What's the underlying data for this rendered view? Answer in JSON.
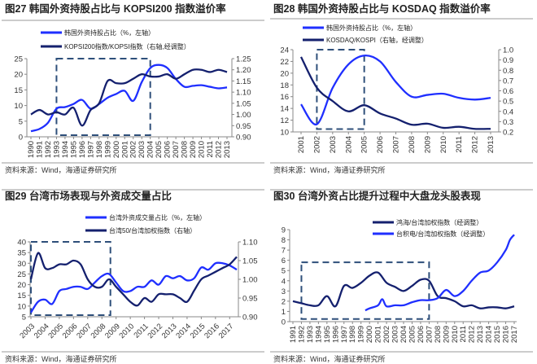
{
  "colors": {
    "bright_blue": "#1f2fff",
    "navy": "#14206e",
    "dashed_box": "#2e4f7a"
  },
  "chart_data": [
    {
      "type": "line",
      "title": "图27 韩国外资持股占比与 KOPSI200 指数溢价率",
      "source": "资料来源：Wind，海通证券研究所",
      "x": [
        1990,
        1991,
        1992,
        1993,
        1994,
        1995,
        1996,
        1997,
        1998,
        1999,
        2000,
        2001,
        2002,
        2003,
        2004,
        2005,
        2006,
        2007,
        2008,
        2009,
        2010,
        2011,
        2012,
        2013
      ],
      "xticks": [
        "1990",
        "1991",
        "1992",
        "1993",
        "1994",
        "1995",
        "1996",
        "1997",
        "1998",
        "1999",
        "2000",
        "2001",
        "2002",
        "2003",
        "2004",
        "2005",
        "2006",
        "2007",
        "2008",
        "2009",
        "2010",
        "2011",
        "2012",
        "2013"
      ],
      "ylim_left": [
        0,
        25
      ],
      "yticks_left": [
        "0",
        "5",
        "10",
        "15",
        "20",
        "25"
      ],
      "ylim_right": [
        0.9,
        1.25
      ],
      "yticks_right": [
        "0.90",
        "0.95",
        "1.00",
        "1.05",
        "1.10",
        "1.15",
        "1.20",
        "1.25"
      ],
      "highlight_box": {
        "x": [
          1993,
          2004
        ],
        "y_left": [
          0,
          25
        ]
      },
      "series": [
        {
          "name": "韩国外资持股占比（%，左轴）",
          "axis": "left",
          "color": "bright_blue",
          "values": [
            1.8,
            2.5,
            4.5,
            9,
            9.5,
            10.5,
            11.8,
            9,
            10.5,
            12.5,
            13.7,
            14.7,
            11.5,
            17.5,
            22,
            23,
            22,
            18.5,
            16,
            16.3,
            16.5,
            16,
            15.5,
            15.8
          ]
        },
        {
          "name": "KOPSI200指数/KOPSI指数（右轴,经调整）",
          "axis": "right",
          "color": "navy",
          "values": [
            1.0,
            1.02,
            1.0,
            1.01,
            1.0,
            1.03,
            0.95,
            1.02,
            1.05,
            1.15,
            1.14,
            1.14,
            1.16,
            1.18,
            1.17,
            1.17,
            1.18,
            1.16,
            1.18,
            1.2,
            1.2,
            1.19,
            1.2,
            1.19
          ]
        }
      ]
    },
    {
      "type": "line",
      "title": "图28 韩国外资持股占比与 KOSDAQ 指数溢价率",
      "source": "资料来源：Wind，海通证券研究所",
      "x": [
        2001,
        2002,
        2003,
        2004,
        2005,
        2006,
        2007,
        2008,
        2009,
        2010,
        2011,
        2012,
        2013
      ],
      "xticks": [
        "2001",
        "2002",
        "2003",
        "2004",
        "2005",
        "2006",
        "2007",
        "2008",
        "2009",
        "2010",
        "2011",
        "2012",
        "2013"
      ],
      "ylim_left": [
        10,
        24
      ],
      "yticks_left": [
        "10",
        "12",
        "14",
        "16",
        "18",
        "20",
        "22",
        "24"
      ],
      "ylim_right": [
        0.2,
        1.0
      ],
      "yticks_right": [
        "0.2",
        "0.3",
        "0.4",
        "0.5",
        "0.6",
        "0.7",
        "0.8",
        "0.9",
        "1.0"
      ],
      "highlight_box": {
        "x": [
          2002,
          2005
        ],
        "y_left": [
          10.2,
          24
        ]
      },
      "series": [
        {
          "name": "韩国外资持股占比（%，左轴）",
          "axis": "left",
          "color": "bright_blue",
          "values": [
            14.7,
            11.3,
            17.5,
            21.5,
            23,
            22,
            18.5,
            16,
            16.3,
            16.5,
            15.8,
            15.5,
            15.8
          ]
        },
        {
          "name": "KOSDAQ/KOSPI（右轴，经调整）",
          "axis": "right",
          "color": "navy",
          "values": [
            0.93,
            0.63,
            0.5,
            0.4,
            0.46,
            0.38,
            0.33,
            0.27,
            0.28,
            0.24,
            0.25,
            0.23,
            0.23
          ]
        }
      ]
    },
    {
      "type": "line",
      "title": "图29 台湾市场表现与外资成交量占比",
      "source": "资料来源：Wind，海通证券研究所",
      "x": [
        2003.0,
        2003.5,
        2004.0,
        2004.5,
        2005.0,
        2005.5,
        2006.0,
        2006.5,
        2007.0,
        2007.5,
        2008.0,
        2008.5,
        2009.0,
        2009.5,
        2010.0,
        2010.5,
        2011.0,
        2011.5,
        2012.0,
        2012.5,
        2013.0,
        2013.5,
        2014.0,
        2014.5,
        2015.0,
        2015.5,
        2016.0,
        2016.5,
        2017.0,
        2017.5
      ],
      "xticks": [
        "2003",
        "2004",
        "2005",
        "2006",
        "2007",
        "2008",
        "2009",
        "2010",
        "2011",
        "2012",
        "2013",
        "2014",
        "2015",
        "2016",
        "2017"
      ],
      "ylim_left": [
        5,
        40
      ],
      "yticks_left": [
        "5",
        "10",
        "15",
        "20",
        "25",
        "30",
        "35",
        "40"
      ],
      "ylim_right": [
        0.9,
        1.1
      ],
      "yticks_right": [
        "0.90",
        "0.95",
        "1.00",
        "1.05",
        "1.10"
      ],
      "highlight_box": {
        "x": [
          2003,
          2008.6
        ],
        "y_left": [
          5,
          40
        ]
      },
      "series": [
        {
          "name": "台湾外资成交量占比（%，左轴）",
          "axis": "left",
          "color": "bright_blue",
          "values": [
            7,
            12,
            13,
            11,
            17,
            18,
            19,
            19,
            18,
            21,
            24,
            25,
            21,
            17,
            17,
            19,
            19,
            22,
            20,
            24,
            23,
            24,
            22,
            23,
            28,
            27,
            30,
            30,
            29,
            27
          ]
        },
        {
          "name": "台湾50/台湾加权指数（右轴）",
          "axis": "right",
          "color": "navy",
          "values": [
            1.0,
            1.07,
            1.03,
            1.03,
            1.04,
            1.04,
            1.05,
            1.04,
            1.0,
            0.98,
            0.98,
            1.0,
            0.98,
            0.96,
            0.94,
            0.93,
            0.95,
            0.94,
            0.96,
            0.96,
            0.96,
            0.95,
            0.94,
            0.97,
            1.0,
            1.01,
            1.02,
            1.03,
            1.04,
            1.06
          ]
        }
      ]
    },
    {
      "type": "line",
      "title": "图30 台湾外资占比提升过程中大盘龙头股表现",
      "source": "资料来源：Wind，海通证券研究所",
      "xticks": [
        "1991",
        "1992",
        "1993",
        "1994",
        "1995",
        "1996",
        "1997",
        "1998",
        "1999",
        "2000",
        "2001",
        "2002",
        "2003",
        "2004",
        "2005",
        "2006",
        "2007",
        "2008",
        "2009",
        "2010",
        "2011",
        "2012",
        "2013",
        "2014",
        "2015",
        "2016",
        "2017"
      ],
      "ylim_left": [
        0,
        9
      ],
      "yticks_left": [
        "0",
        "1",
        "2",
        "3",
        "4",
        "5",
        "6",
        "7",
        "8",
        "9"
      ],
      "highlight_box": {
        "x": [
          1992,
          2007
        ],
        "y_left": [
          0.1,
          5.8
        ]
      },
      "series": [
        {
          "name": "鸿海/台湾加权指数（经调整）",
          "axis": "left",
          "color": "navy",
          "x": [
            1991,
            1992,
            1993,
            1994,
            1995,
            1996,
            1997,
            1998,
            1999,
            2000,
            2001,
            2002,
            2003,
            2004,
            2005,
            2006,
            2007,
            2008,
            2009,
            2010,
            2011,
            2012,
            2013,
            2014,
            2015,
            2016,
            2017
          ],
          "values": [
            2.0,
            1.8,
            1.6,
            1.6,
            2.5,
            1.5,
            3.5,
            3.3,
            3.8,
            4.5,
            4.8,
            3.8,
            3.4,
            3.0,
            3.5,
            4.1,
            4.0,
            2.5,
            2.3,
            2.0,
            1.5,
            1.6,
            1.3,
            1.4,
            1.4,
            1.3,
            1.5
          ]
        },
        {
          "name": "台积电/台湾加权指数（经调整）",
          "axis": "left",
          "color": "bright_blue",
          "x": [
            1999.5,
            2000,
            2001,
            2001.5,
            2002,
            2003,
            2004,
            2005,
            2006,
            2007,
            2008,
            2009,
            2010,
            2011,
            2012,
            2013,
            2014,
            2015,
            2016,
            2016.5,
            2017
          ],
          "values": [
            1.1,
            1.3,
            1.6,
            2.2,
            1.5,
            1.6,
            1.6,
            1.9,
            2.1,
            2.1,
            2.3,
            3.1,
            2.5,
            3.0,
            4.0,
            4.8,
            5.0,
            5.8,
            7.0,
            8.0,
            8.5
          ]
        }
      ]
    }
  ]
}
